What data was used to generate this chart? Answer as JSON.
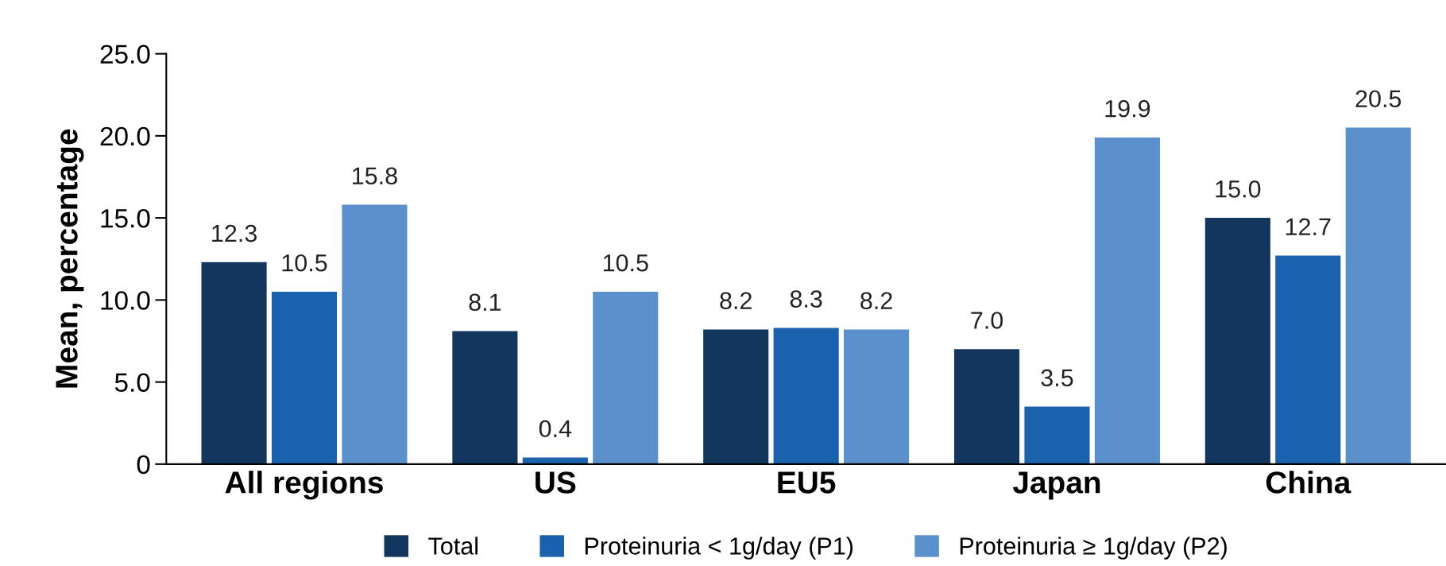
{
  "chart_data": {
    "type": "bar",
    "ylabel": "Mean, percentage",
    "categories": [
      "All regions",
      "US",
      "EU5",
      "Japan",
      "China"
    ],
    "series": [
      {
        "name": "Total",
        "color": "#13365f",
        "values": [
          12.3,
          8.1,
          8.2,
          7.0,
          15.0
        ],
        "value_labels": [
          "12.3",
          "8.1",
          "8.2",
          "7.0",
          "15.0"
        ]
      },
      {
        "name": "Proteinuria < 1g/day (P1)",
        "color": "#1a62ad",
        "values": [
          10.5,
          0.4,
          8.3,
          3.5,
          12.7
        ],
        "value_labels": [
          "10.5",
          "0.4",
          "8.3",
          "3.5",
          "12.7"
        ]
      },
      {
        "name": "Proteinuria ≥ 1g/day (P2)",
        "color": "#5a90cb",
        "values": [
          15.8,
          10.5,
          8.2,
          19.9,
          20.5
        ],
        "value_labels": [
          "15.8",
          "10.5",
          "8.2",
          "19.9",
          "20.5"
        ]
      }
    ],
    "ylim": [
      0,
      25
    ],
    "yticks": [
      {
        "value": 0,
        "label": "0"
      },
      {
        "value": 5,
        "label": "5.0"
      },
      {
        "value": 10,
        "label": "10.0"
      },
      {
        "value": 15,
        "label": "15.0"
      },
      {
        "value": 20,
        "label": "20.0"
      },
      {
        "value": 25,
        "label": "25.0"
      }
    ],
    "grid": false,
    "legend": "bottom"
  }
}
